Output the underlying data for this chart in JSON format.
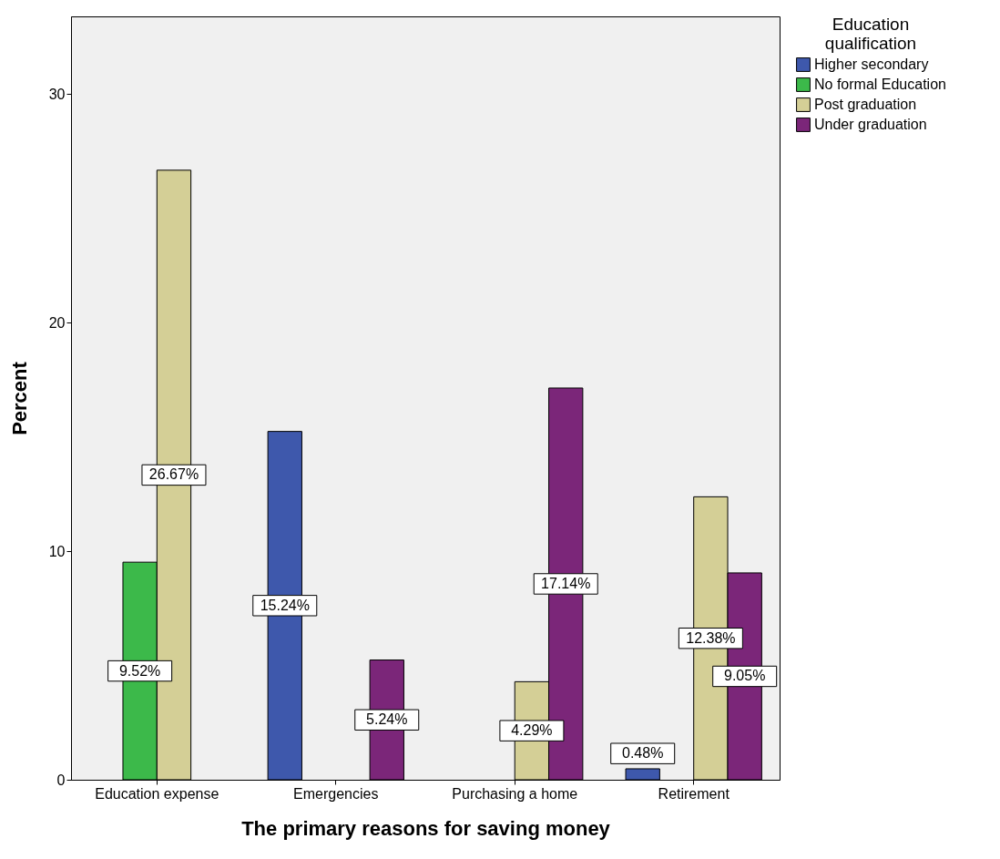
{
  "chart_data": {
    "type": "bar",
    "xlabel": "The primary reasons for saving money",
    "ylabel": "Percent",
    "legend_title": "Education qualification",
    "legend": "top right",
    "grid": false,
    "categories": [
      "Education expense",
      "Emergencies",
      "Purchasing a home",
      "Retirement"
    ],
    "ylim": [
      0,
      33.4
    ],
    "yticks": [
      0,
      10,
      20,
      30
    ],
    "series": [
      {
        "name": "Higher secondary",
        "color": "#3e58ac",
        "values": [
          null,
          15.24,
          null,
          0.48
        ],
        "value_labels": [
          null,
          "15.24%",
          null,
          "0.48%"
        ]
      },
      {
        "name": "No formal Education",
        "color": "#3cb94a",
        "values": [
          9.52,
          null,
          null,
          null
        ],
        "value_labels": [
          "9.52%",
          null,
          null,
          null
        ]
      },
      {
        "name": "Post graduation",
        "color": "#d4cf96",
        "values": [
          26.67,
          null,
          4.29,
          12.38
        ],
        "value_labels": [
          "26.67%",
          null,
          "4.29%",
          "12.38%"
        ]
      },
      {
        "name": "Under graduation",
        "color": "#7b2679",
        "values": [
          null,
          5.24,
          17.14,
          9.05
        ],
        "value_labels": [
          null,
          "5.24%",
          "17.14%",
          "9.05%"
        ]
      }
    ]
  }
}
